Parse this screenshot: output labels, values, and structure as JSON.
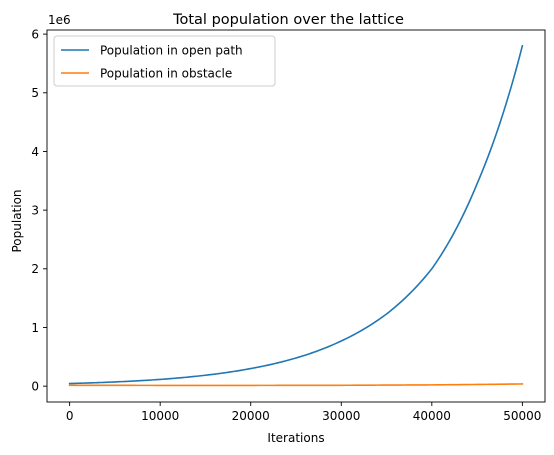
{
  "chart_data": {
    "type": "line",
    "title": "Total population over the lattice",
    "xlabel": "Iterations",
    "ylabel": "Population",
    "y_offset_label": "1e6",
    "xlim": [
      -2500,
      52500
    ],
    "ylim": [
      -270000,
      6070000
    ],
    "xticks": [
      0,
      10000,
      20000,
      30000,
      40000,
      50000
    ],
    "yticks": [
      0,
      1000000,
      2000000,
      3000000,
      4000000,
      5000000,
      6000000
    ],
    "ytick_labels": [
      "0",
      "1",
      "2",
      "3",
      "4",
      "5",
      "6"
    ],
    "grid": false,
    "legend_position": "upper-left",
    "series": [
      {
        "name": "Population in open path",
        "color": "#1f77b4",
        "x": [
          0,
          5000,
          10000,
          15000,
          20000,
          25000,
          30000,
          35000,
          40000,
          45000,
          50000
        ],
        "y": [
          45000,
          72000,
          115000,
          186000,
          300000,
          480000,
          770000,
          1230000,
          2000000,
          3450000,
          5800000
        ]
      },
      {
        "name": "Population in obstacle",
        "color": "#ff7f0e",
        "x": [
          0,
          10000,
          20000,
          30000,
          40000,
          50000
        ],
        "y": [
          15000,
          13000,
          13000,
          15000,
          22000,
          38000
        ]
      }
    ]
  }
}
